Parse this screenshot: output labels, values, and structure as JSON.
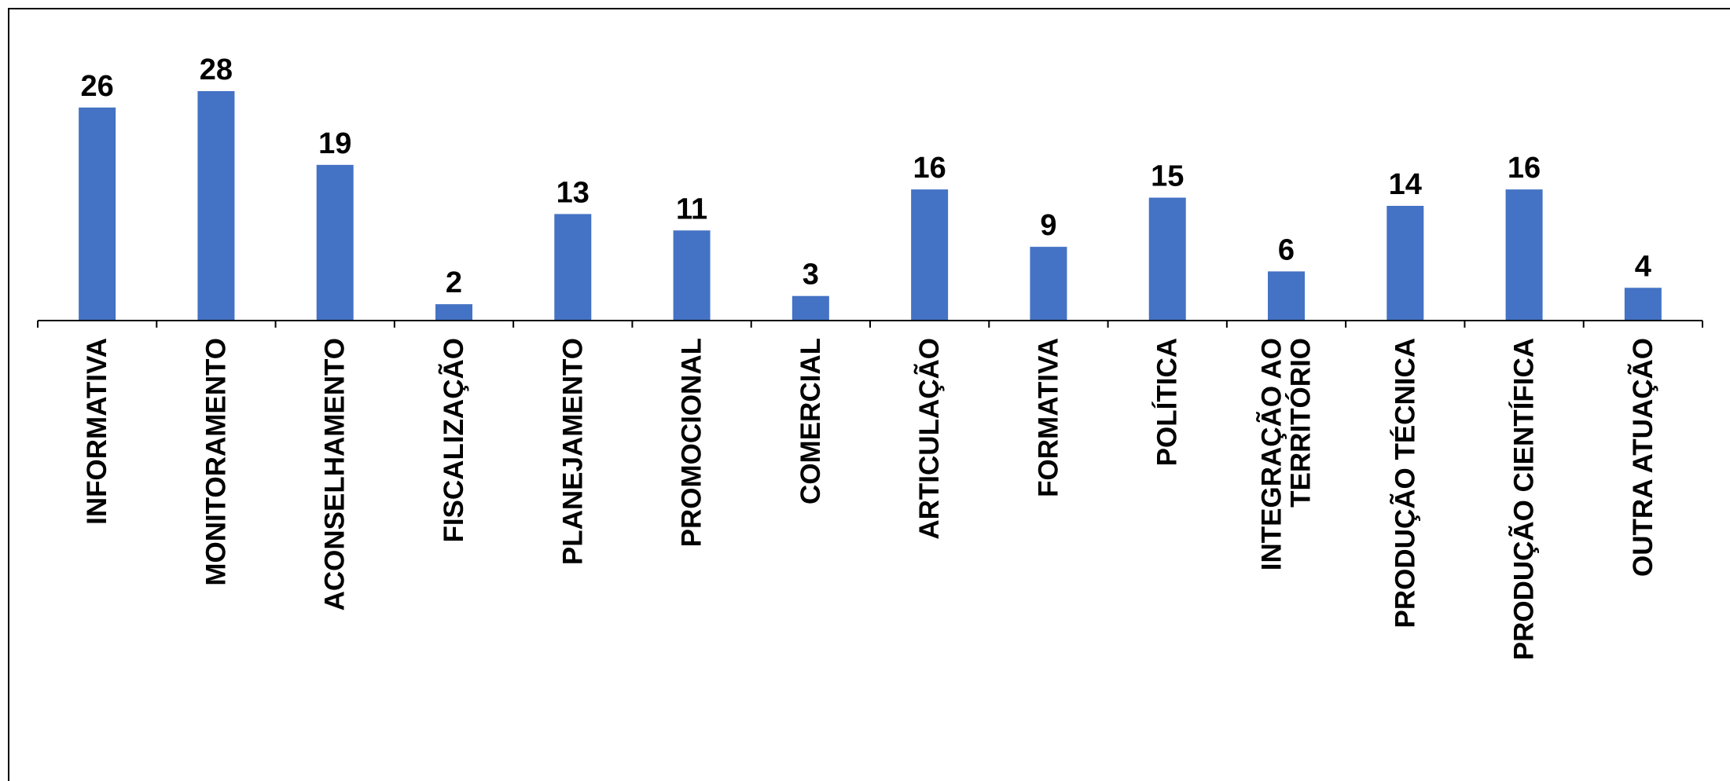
{
  "chart_data": {
    "type": "bar",
    "categories": [
      [
        "INFORMATIVA"
      ],
      [
        "MONITORAMENTO"
      ],
      [
        "ACONSELHAMENTO"
      ],
      [
        "FISCALIZAÇÃO"
      ],
      [
        "PLANEJAMENTO"
      ],
      [
        "PROMOCIONAL"
      ],
      [
        "COMERCIAL"
      ],
      [
        "ARTICULAÇÃO"
      ],
      [
        "FORMATIVA"
      ],
      [
        "POLÍTICA"
      ],
      [
        "INTEGRAÇÃO AO",
        "TERRITÓRIO"
      ],
      [
        "PRODUÇÃO TÉCNICA"
      ],
      [
        "PRODUÇÃO CIENTÍFICA"
      ],
      [
        "OUTRA ATUAÇÃO"
      ]
    ],
    "values": [
      26,
      28,
      19,
      2,
      13,
      11,
      3,
      16,
      9,
      15,
      6,
      14,
      16,
      4
    ],
    "title": "",
    "xlabel": "",
    "ylabel": "",
    "ylim": [
      0,
      30
    ],
    "grid": false,
    "legend": "none",
    "data_labels": true,
    "bar_color": "#4472C4"
  }
}
